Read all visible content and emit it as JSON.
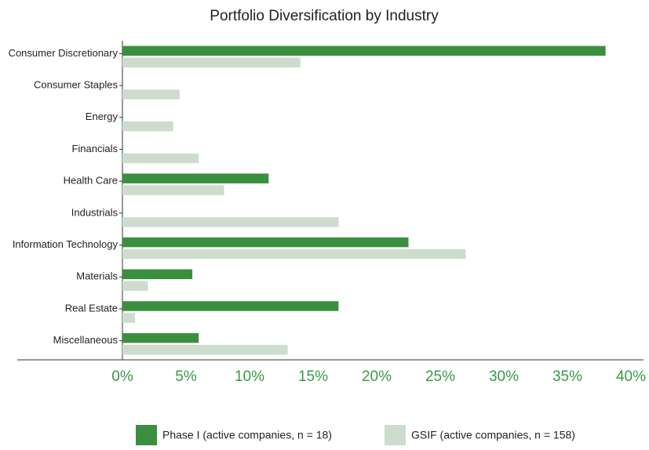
{
  "chart_data": {
    "type": "hbar",
    "title": "Portfolio Diversification by Industry",
    "categories": [
      "Consumer Discretionary",
      "Consumer Staples",
      "Energy",
      "Financials",
      "Health Care",
      "Industrials",
      "Information Technology",
      "Materials",
      "Real Estate",
      "Miscellaneous"
    ],
    "series": [
      {
        "name": "Phase I (active companies, n = 18)",
        "color": "#3a8f3f",
        "values": [
          38,
          0,
          0,
          0,
          11.5,
          0,
          22.5,
          5.5,
          17,
          6
        ]
      },
      {
        "name": "GSIF (active companies, n = 158)",
        "color": "#cddccd",
        "values": [
          14,
          4.5,
          4,
          6,
          8,
          17,
          27,
          2,
          1,
          13
        ]
      }
    ],
    "xlim": [
      0,
      40
    ],
    "xticks": [
      {
        "value": 0,
        "label": "0%"
      },
      {
        "value": 5,
        "label": "5%"
      },
      {
        "value": 10,
        "label": "10%"
      },
      {
        "value": 15,
        "label": "15%"
      },
      {
        "value": 20,
        "label": "20%"
      },
      {
        "value": 25,
        "label": "25%"
      },
      {
        "value": 30,
        "label": "30%"
      },
      {
        "value": 35,
        "label": "35%"
      },
      {
        "value": 40,
        "label": "40%"
      }
    ],
    "grid": false,
    "legend": "bottom"
  }
}
